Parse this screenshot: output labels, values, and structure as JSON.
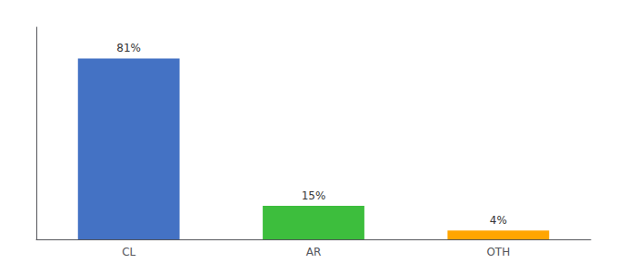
{
  "chart_data": {
    "type": "bar",
    "categories": [
      "CL",
      "AR",
      "OTH"
    ],
    "values": [
      81,
      15,
      4
    ],
    "value_labels": [
      "81%",
      "15%",
      "4%"
    ],
    "colors": [
      "#4472c4",
      "#3dbe3d",
      "#ffa500"
    ],
    "ylim": [
      0,
      95
    ],
    "grid": false,
    "data_labels": true,
    "tick_labels": "x"
  }
}
